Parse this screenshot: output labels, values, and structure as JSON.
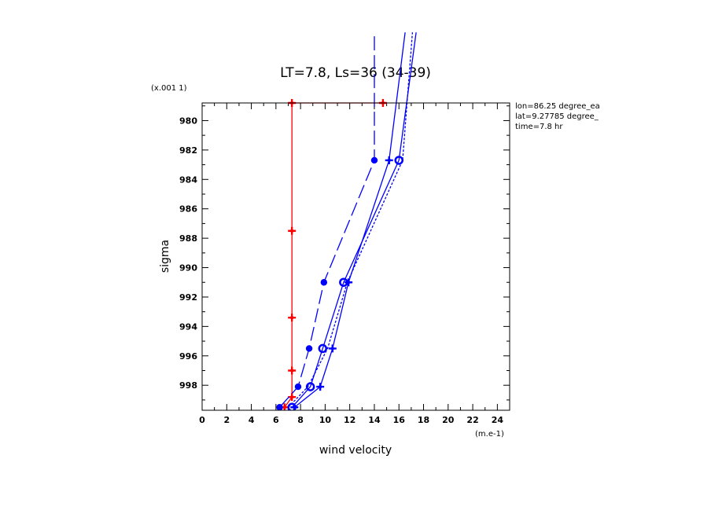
{
  "chart_data": {
    "type": "line",
    "title": "LT=7.8, Ls=36 (34-39)",
    "xlabel": "wind velocity",
    "ylabel": "sigma",
    "x_unit_label": "(m.e-1)",
    "y_unit_label": "(x.001 1)",
    "xlim": [
      0,
      25
    ],
    "ylim": [
      999.7,
      978.8
    ],
    "x_ticks": [
      "0",
      "2",
      "4",
      "6",
      "8",
      "10",
      "12",
      "14",
      "16",
      "18",
      "20",
      "22",
      "24"
    ],
    "y_ticks": [
      "980",
      "982",
      "984",
      "986",
      "988",
      "990",
      "992",
      "994",
      "996",
      "998"
    ],
    "info": [
      "lon=86.25 degree_ea",
      "lat=9.27785 degree_",
      "time=7.8 hr"
    ],
    "series": [
      {
        "color": "#ff0000",
        "dash": "solid",
        "marker": "plus",
        "x": [
          6.7,
          7.3,
          7.3,
          7.3,
          7.3,
          7.3,
          14.7
        ],
        "y": [
          999.5,
          998.8,
          997.0,
          993.4,
          987.5,
          978.8,
          978.8
        ]
      },
      {
        "color": "#0000ff",
        "dash": "longdash",
        "marker": "dot",
        "x": [
          6.3,
          7.8,
          8.7,
          9.9,
          14.0,
          14.0
        ],
        "y": [
          999.5,
          998.1,
          995.5,
          991.0,
          982.7,
          974.0
        ]
      },
      {
        "color": "#0000ff",
        "dash": "solid",
        "marker": "ring",
        "x": [
          7.3,
          8.8,
          9.8,
          11.5,
          16.0,
          17.4
        ],
        "y": [
          999.5,
          998.1,
          995.5,
          991.0,
          982.7,
          974.0
        ]
      },
      {
        "color": "#0000ff",
        "dash": "solid",
        "marker": "plus",
        "x": [
          7.5,
          9.6,
          10.6,
          11.9,
          15.2,
          16.5
        ],
        "y": [
          999.5,
          998.1,
          995.5,
          991.0,
          982.7,
          974.0
        ]
      },
      {
        "color": "#0000ff",
        "dash": "dotted",
        "marker": "none",
        "x": [
          7.0,
          8.6,
          10.2,
          11.8,
          16.3,
          17.1
        ],
        "y": [
          999.5,
          998.1,
          995.5,
          991.0,
          982.7,
          974.0
        ]
      }
    ]
  }
}
